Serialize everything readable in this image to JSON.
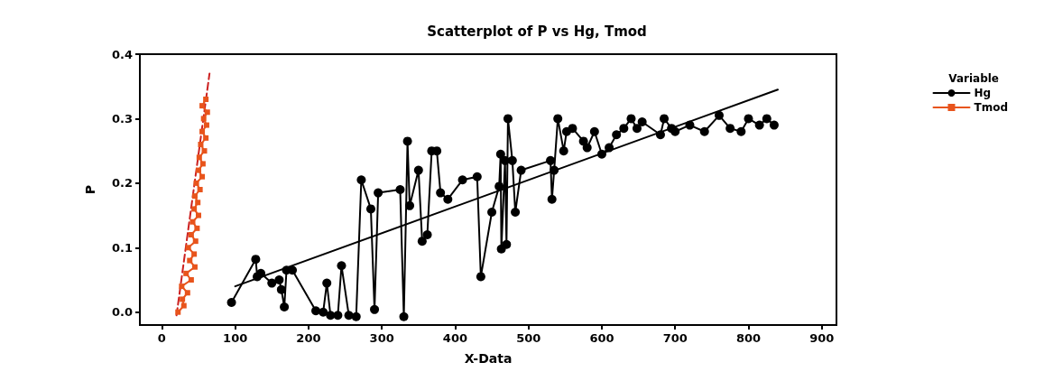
{
  "chart_data": {
    "type": "line",
    "title": "Scatterplot of P vs Hg, Tmod",
    "xlabel": "X-Data",
    "ylabel": "P",
    "legend_title": "Variable",
    "legend": "right",
    "grid": false,
    "xlim": [
      -30,
      920
    ],
    "xticks": [
      0,
      100,
      200,
      300,
      400,
      500,
      600,
      700,
      800,
      900
    ],
    "ylim": [
      -0.02,
      0.4
    ],
    "yticks": [
      {
        "value": 0,
        "label": "0.0"
      },
      0.1,
      0.2,
      0.3,
      0.4
    ],
    "series": [
      {
        "name": "Hg",
        "color": "#000000",
        "marker": "circle",
        "line_style": "solid",
        "x": [
          95,
          128,
          130,
          135,
          150,
          160,
          163,
          167,
          170,
          178,
          210,
          220,
          225,
          230,
          240,
          245,
          255,
          265,
          272,
          285,
          290,
          295,
          325,
          330,
          335,
          338,
          350,
          355,
          362,
          368,
          375,
          380,
          390,
          410,
          430,
          435,
          450,
          460,
          462,
          463,
          468,
          470,
          472,
          478,
          482,
          490,
          530,
          532,
          535,
          540,
          548,
          552,
          560,
          575,
          580,
          590,
          600,
          610,
          620,
          630,
          640,
          648,
          655,
          680,
          685,
          695,
          700,
          720,
          740,
          760,
          775,
          790,
          800,
          815,
          825,
          835
        ],
        "values": [
          0.015,
          0.082,
          0.055,
          0.06,
          0.045,
          0.05,
          0.035,
          0.008,
          0.065,
          0.065,
          0.002,
          0.0,
          0.045,
          -0.005,
          -0.005,
          0.072,
          -0.005,
          -0.007,
          0.205,
          0.16,
          0.004,
          0.185,
          0.19,
          -0.007,
          0.265,
          0.165,
          0.22,
          0.11,
          0.12,
          0.25,
          0.25,
          0.185,
          0.175,
          0.205,
          0.21,
          0.055,
          0.155,
          0.195,
          0.245,
          0.098,
          0.235,
          0.105,
          0.3,
          0.235,
          0.155,
          0.22,
          0.235,
          0.175,
          0.22,
          0.3,
          0.25,
          0.28,
          0.285,
          0.265,
          0.255,
          0.28,
          0.245,
          0.255,
          0.275,
          0.285,
          0.3,
          0.285,
          0.295,
          0.275,
          0.3,
          0.285,
          0.28,
          0.29,
          0.28,
          0.305,
          0.285,
          0.28,
          0.3,
          0.29,
          0.3,
          0.29
        ]
      },
      {
        "name": "Tmod",
        "color": "#e8541c",
        "marker": "square",
        "line_style": "solid",
        "x": [
          22,
          30,
          28,
          35,
          27,
          40,
          33,
          45,
          38,
          44,
          36,
          46,
          40,
          48,
          42,
          50,
          44,
          49,
          45,
          52,
          47,
          55,
          50,
          56,
          51,
          58,
          53,
          60,
          55,
          61,
          57,
          62,
          55,
          60
        ],
        "values": [
          0.0,
          0.01,
          0.02,
          0.03,
          0.04,
          0.05,
          0.06,
          0.07,
          0.08,
          0.09,
          0.1,
          0.11,
          0.12,
          0.13,
          0.14,
          0.15,
          0.16,
          0.17,
          0.18,
          0.19,
          0.2,
          0.21,
          0.22,
          0.23,
          0.24,
          0.25,
          0.26,
          0.27,
          0.28,
          0.29,
          0.3,
          0.31,
          0.32,
          0.33
        ]
      },
      {
        "color": "#000000",
        "marker": "none",
        "line_style": "solid",
        "x": [
          100,
          840
        ],
        "values": [
          0.04,
          0.345
        ]
      },
      {
        "color": "#cc2020",
        "marker": "none",
        "line_style": "dashed",
        "x": [
          20,
          65
        ],
        "values": [
          -0.005,
          0.37
        ]
      }
    ]
  }
}
